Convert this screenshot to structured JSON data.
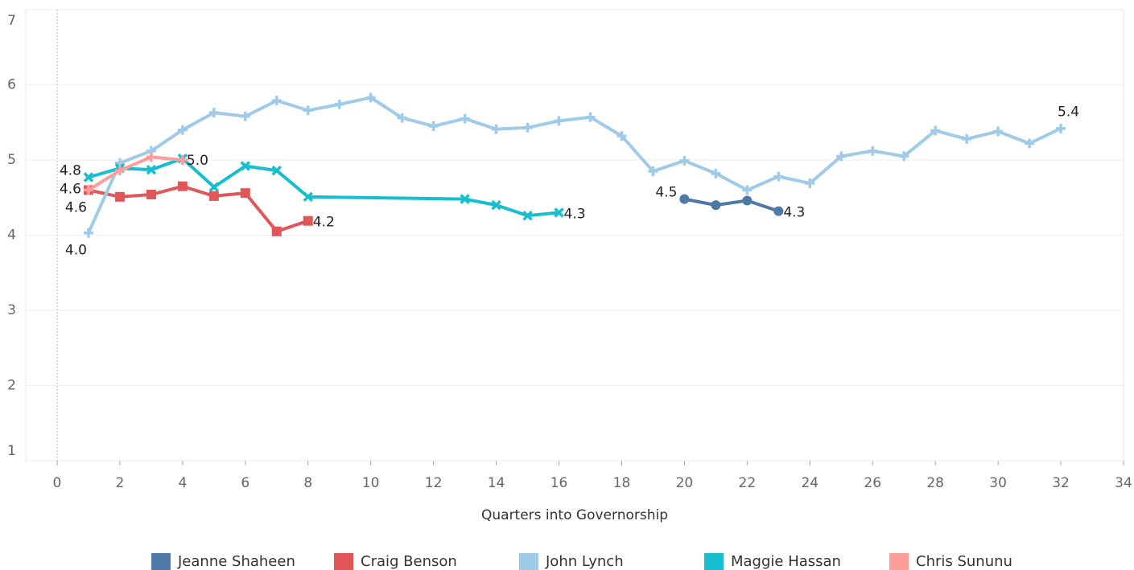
{
  "chart_data": {
    "type": "line",
    "x_label": "Quarters into Governorship",
    "xlim": [
      -1,
      34
    ],
    "xticks": [
      0,
      2,
      4,
      6,
      8,
      10,
      12,
      14,
      16,
      18,
      20,
      22,
      24,
      26,
      28,
      30,
      32,
      34
    ],
    "ylim": [
      1,
      7
    ],
    "yticks": [
      1,
      2,
      3,
      4,
      5,
      6,
      7
    ],
    "grid": true,
    "legend": "bottom",
    "series": [
      {
        "name": "Jeanne Shaheen",
        "color": "#4e79a7",
        "marker": "circle",
        "x": [
          20,
          21,
          22,
          23
        ],
        "values": [
          4.48,
          4.4,
          4.46,
          4.32
        ],
        "value_labels": [
          "4.5",
          null,
          null,
          "4.3"
        ]
      },
      {
        "name": "Craig Benson",
        "color": "#e15759",
        "marker": "square",
        "x": [
          1,
          2,
          3,
          4,
          5,
          6,
          7,
          8
        ],
        "values": [
          4.6,
          4.51,
          4.54,
          4.65,
          4.52,
          4.56,
          4.05,
          4.19
        ],
        "value_labels": [
          "4.6",
          null,
          null,
          null,
          null,
          null,
          null,
          "4.2"
        ]
      },
      {
        "name": "John Lynch",
        "color": "#a0cbe8",
        "marker": "plus",
        "x": [
          1,
          2,
          3,
          4,
          5,
          6,
          7,
          8,
          9,
          10,
          11,
          12,
          13,
          14,
          15,
          16,
          17,
          18,
          19,
          20,
          21,
          22,
          23,
          24,
          25,
          26,
          27,
          28,
          29,
          30,
          31,
          32
        ],
        "values": [
          4.03,
          4.96,
          5.12,
          5.4,
          5.63,
          5.58,
          5.79,
          5.66,
          5.74,
          5.83,
          5.56,
          5.45,
          5.55,
          5.41,
          5.43,
          5.52,
          5.57,
          5.32,
          4.85,
          4.99,
          4.82,
          4.6,
          4.78,
          4.69,
          5.05,
          5.12,
          5.05,
          5.39,
          5.28,
          5.38,
          5.22,
          5.42
        ],
        "value_labels": [
          "4.0",
          null,
          null,
          null,
          null,
          null,
          null,
          null,
          null,
          null,
          null,
          null,
          null,
          null,
          null,
          null,
          null,
          null,
          null,
          null,
          null,
          null,
          null,
          null,
          null,
          null,
          null,
          null,
          null,
          null,
          null,
          "5.4"
        ]
      },
      {
        "name": "Maggie Hassan",
        "color": "#17becf",
        "marker": "cross",
        "x": [
          1,
          2,
          3,
          4,
          5,
          6,
          7,
          8,
          13,
          14,
          15,
          16
        ],
        "values": [
          4.77,
          4.89,
          4.87,
          5.02,
          4.64,
          4.92,
          4.86,
          4.51,
          4.48,
          4.4,
          4.26,
          4.3
        ],
        "value_labels": [
          "4.8",
          null,
          null,
          "5.0",
          null,
          null,
          null,
          null,
          null,
          null,
          null,
          "4.3"
        ]
      },
      {
        "name": "Chris Sununu",
        "color": "#ff9d9a",
        "marker": "plus",
        "x": [
          1,
          2,
          3,
          4
        ],
        "values": [
          4.6,
          4.86,
          5.04,
          5.0
        ],
        "value_labels": [
          "4.6",
          null,
          null,
          null
        ]
      }
    ]
  }
}
